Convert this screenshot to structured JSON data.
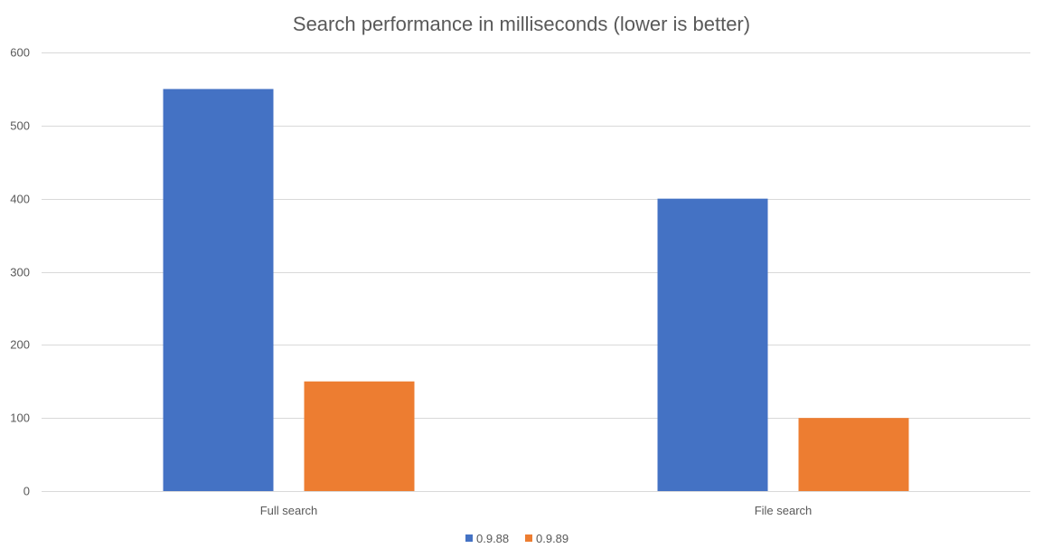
{
  "chart_data": {
    "type": "bar",
    "title": "Search performance in milliseconds (lower is better)",
    "xlabel": "",
    "ylabel": "",
    "categories": [
      "Full search",
      "File search"
    ],
    "series": [
      {
        "name": "0.9.88",
        "color": "#4472C4",
        "values": [
          550,
          400
        ]
      },
      {
        "name": "0.9.89",
        "color": "#ED7D31",
        "values": [
          150,
          100
        ]
      }
    ],
    "ylim": [
      0,
      600
    ],
    "yticks": [
      0,
      100,
      200,
      300,
      400,
      500,
      600
    ],
    "grid": true,
    "legend_position": "bottom"
  }
}
